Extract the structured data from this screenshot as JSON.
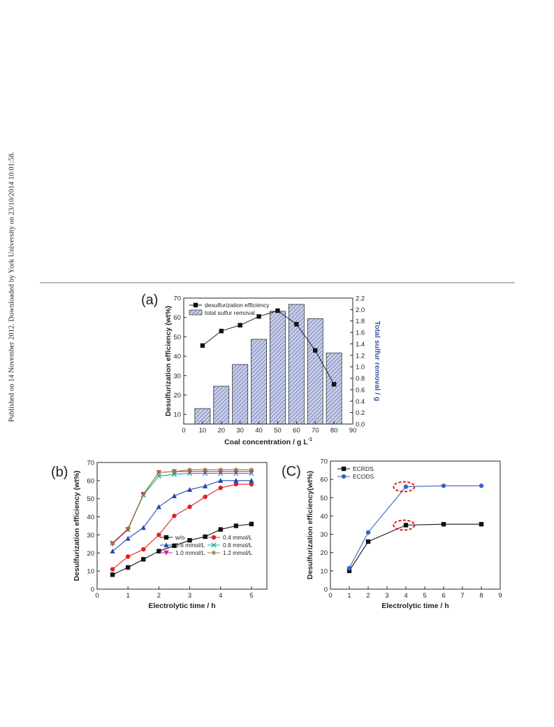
{
  "side_note": "Published on 14 November 2012. Downloaded by York University on 23/10/2014 10:01:58.",
  "chart_data": [
    {
      "panel": "(a)",
      "type": "bar",
      "xlabel": "Coal concentration / g L",
      "xlabel_sup": "-1",
      "ylabel": "Desulfurization efficiency (wt%)",
      "y2label": "Total sulfur removal / g",
      "xlim": [
        0,
        90
      ],
      "xticks": [
        0,
        10,
        20,
        30,
        40,
        50,
        60,
        70,
        80,
        90
      ],
      "ylim": [
        5,
        70
      ],
      "yticks": [
        10,
        20,
        30,
        40,
        50,
        60,
        70
      ],
      "y2lim": [
        0,
        2.2
      ],
      "y2ticks": [
        "0.0",
        "0.2",
        "0.4",
        "0.6",
        "0.8",
        "1.0",
        "1.2",
        "1.4",
        "1.6",
        "1.8",
        "2.0",
        "2.2"
      ],
      "legend_position": "top-left",
      "series": [
        {
          "name": "desulfurization efficiency",
          "kind": "line",
          "axis": "left",
          "color": "#222222",
          "x": [
            10,
            20,
            30,
            40,
            50,
            60,
            70,
            80
          ],
          "y": [
            45.5,
            53,
            56,
            60.5,
            63.5,
            56.5,
            43,
            25.5
          ]
        },
        {
          "name": "total sulfur removal",
          "kind": "bar",
          "axis": "right",
          "color": "#6677bb",
          "x": [
            10,
            20,
            30,
            40,
            50,
            60,
            70,
            80
          ],
          "y": [
            0.27,
            0.66,
            1.04,
            1.48,
            1.97,
            2.09,
            1.84,
            1.24
          ]
        }
      ]
    },
    {
      "panel": "(b)",
      "type": "line",
      "xlabel": "Electrolytic time / h",
      "ylabel": "Desulfurization efficiency (wt%)",
      "xlim": [
        0,
        5.5
      ],
      "xticks": [
        0,
        1,
        2,
        3,
        4,
        5
      ],
      "ylim": [
        0,
        70
      ],
      "yticks": [
        0,
        10,
        20,
        30,
        40,
        50,
        60,
        70
      ],
      "legend_position": "bottom-right",
      "series": [
        {
          "name": "w/o",
          "color": "#111111",
          "marker": "square",
          "x": [
            0.5,
            1,
            1.5,
            2,
            2.5,
            3,
            3.5,
            4,
            4.5,
            5
          ],
          "y": [
            8,
            12,
            16.5,
            21,
            24,
            27,
            29,
            33,
            35,
            36
          ]
        },
        {
          "name": "0.4 mmol/L",
          "color": "#e02020",
          "marker": "circle",
          "x": [
            0.5,
            1,
            1.5,
            2,
            2.5,
            3,
            3.5,
            4,
            4.5,
            5
          ],
          "y": [
            11,
            18,
            22,
            30,
            40.5,
            45.5,
            51,
            56,
            58,
            58
          ]
        },
        {
          "name": "0.6 mmol/L",
          "color": "#2844b0",
          "marker": "triangle-up",
          "x": [
            0.5,
            1,
            1.5,
            2,
            2.5,
            3,
            3.5,
            4,
            4.5,
            5
          ],
          "y": [
            21,
            28,
            34,
            45.5,
            51.5,
            55,
            57,
            60,
            60,
            60
          ]
        },
        {
          "name": "0.8 mmol/L",
          "color": "#17a39a",
          "marker": "x",
          "x": [
            0.5,
            1,
            1.5,
            2,
            2.5,
            3,
            3.5,
            4,
            4.5,
            5
          ],
          "y": [
            25.5,
            33,
            52,
            62.5,
            63.5,
            64,
            64,
            64,
            64,
            64
          ]
        },
        {
          "name": "1.0 mmol/L",
          "color": "#d02090",
          "marker": "triangle-down",
          "x": [
            0.5,
            1,
            1.5,
            2,
            2.5,
            3,
            3.5,
            4,
            4.5,
            5
          ],
          "y": [
            25,
            33,
            52.5,
            64.5,
            65,
            65,
            65,
            65,
            65,
            65
          ]
        },
        {
          "name": "1.2 mmol/L",
          "color": "#908030",
          "marker": "star",
          "x": [
            0.5,
            1,
            1.5,
            2,
            2.5,
            3,
            3.5,
            4,
            4.5,
            5
          ],
          "y": [
            25.5,
            33.5,
            52.5,
            64.5,
            65,
            66,
            66,
            66,
            66,
            66
          ]
        }
      ]
    },
    {
      "panel": "(C)",
      "type": "line",
      "xlabel": "Electrolytic time / h",
      "ylabel": "Desulfurization efficiency(wt%)",
      "xlim": [
        0,
        9
      ],
      "xticks": [
        0,
        1,
        2,
        3,
        4,
        5,
        6,
        7,
        8,
        9
      ],
      "ylim": [
        0,
        70
      ],
      "yticks": [
        0,
        10,
        20,
        30,
        40,
        50,
        60,
        70
      ],
      "legend_position": "top-left",
      "annotations": [
        "red dashed ellipse around ECODS at 4 h",
        "red dashed ellipse around ECRDS at 4 h"
      ],
      "series": [
        {
          "name": "ECRDS",
          "color": "#111111",
          "marker": "square",
          "x": [
            1,
            2,
            4,
            6,
            8
          ],
          "y": [
            10,
            26,
            35,
            35.5,
            35.5
          ]
        },
        {
          "name": "ECODS",
          "color": "#3a63c6",
          "marker": "circle",
          "x": [
            1,
            2,
            4,
            6,
            8
          ],
          "y": [
            11.5,
            31,
            56,
            56.5,
            56.5
          ]
        }
      ]
    }
  ]
}
